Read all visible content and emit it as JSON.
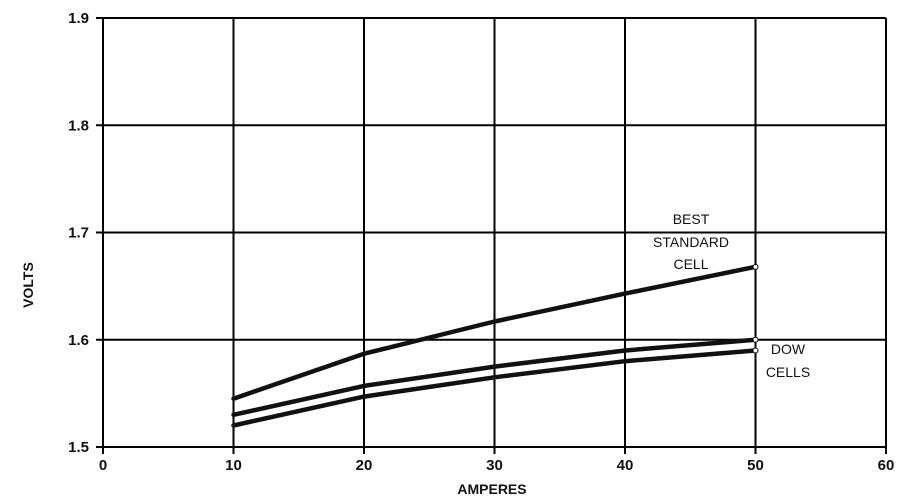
{
  "chart_data": {
    "type": "line",
    "title": "",
    "xlabel": "AMPERES",
    "ylabel": "VOLTS",
    "xlim": [
      0,
      60
    ],
    "ylim": [
      1.5,
      1.9
    ],
    "xticks": [
      0,
      10,
      20,
      30,
      40,
      50,
      60
    ],
    "yticks": [
      1.5,
      1.6,
      1.7,
      1.8,
      1.9
    ],
    "xtick_labels": [
      "0",
      "10",
      "20",
      "30",
      "40",
      "50",
      "60"
    ],
    "ytick_labels": [
      "1.5",
      "1.6",
      "1.7",
      "1.8",
      "1.9"
    ],
    "grid": true,
    "series": [
      {
        "x": [
          10,
          20,
          30,
          40,
          50
        ],
        "y": [
          1.545,
          1.587,
          1.617,
          1.643,
          1.668
        ]
      },
      {
        "x": [
          10,
          20,
          30,
          40,
          50
        ],
        "y": [
          1.53,
          1.557,
          1.575,
          1.59,
          1.6
        ]
      },
      {
        "x": [
          10,
          20,
          30,
          40,
          50
        ],
        "y": [
          1.52,
          1.547,
          1.565,
          1.58,
          1.59
        ]
      }
    ],
    "annotations": [
      {
        "lines": [
          "BEST",
          "STANDARD",
          "CELL"
        ]
      },
      {
        "lines": [
          "DOW",
          "CELLS"
        ]
      }
    ],
    "line_color": "#111111"
  }
}
